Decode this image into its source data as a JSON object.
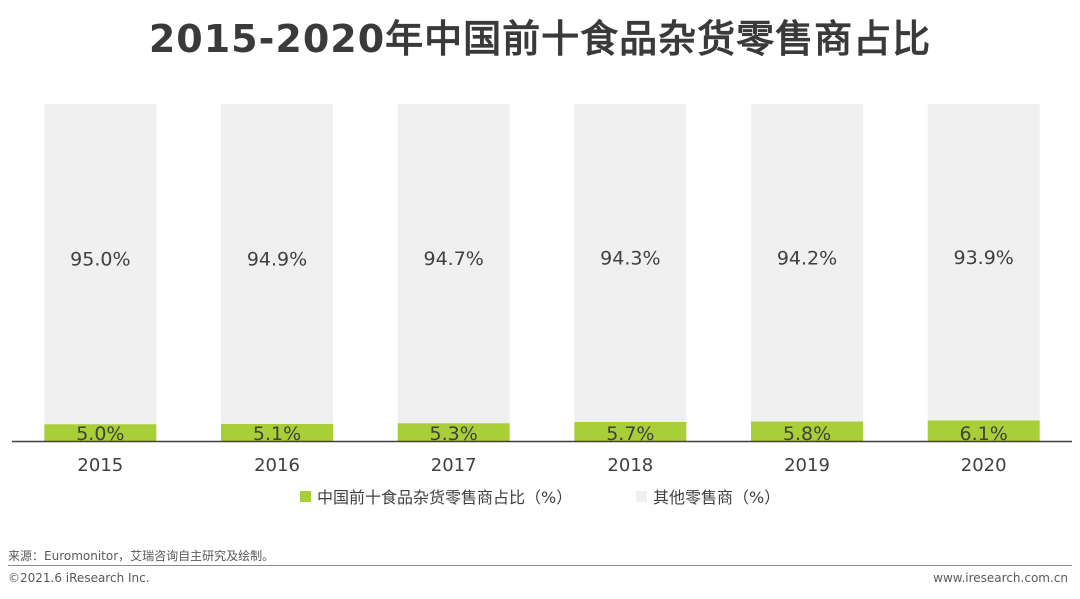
{
  "chart_data": {
    "type": "bar",
    "stacked": true,
    "title": "2015-2020年中国前十食品杂货零售商占比",
    "categories": [
      "2015",
      "2016",
      "2017",
      "2018",
      "2019",
      "2020"
    ],
    "series": [
      {
        "name": "中国前十食品杂货零售商占比（%）",
        "values": [
          5.0,
          5.1,
          5.3,
          5.7,
          5.8,
          6.1
        ],
        "labels": [
          "5.0%",
          "5.1%",
          "5.3%",
          "5.7%",
          "5.8%",
          "6.1%"
        ],
        "color": "#a9cf38"
      },
      {
        "name": "其他零售商（%）",
        "values": [
          95.0,
          94.9,
          94.7,
          94.3,
          94.2,
          93.9
        ],
        "labels": [
          "95.0%",
          "94.9%",
          "94.7%",
          "94.3%",
          "94.2%",
          "93.9%"
        ],
        "color": "#f0f0f0"
      }
    ],
    "ylim": [
      0,
      100
    ],
    "grid": false,
    "legend_position": "bottom"
  },
  "footer": {
    "source": "来源：Euromonitor，艾瑞咨询自主研究及绘制。",
    "copyright": "©2021.6 iResearch Inc.",
    "website": "www.iresearch.com.cn"
  }
}
